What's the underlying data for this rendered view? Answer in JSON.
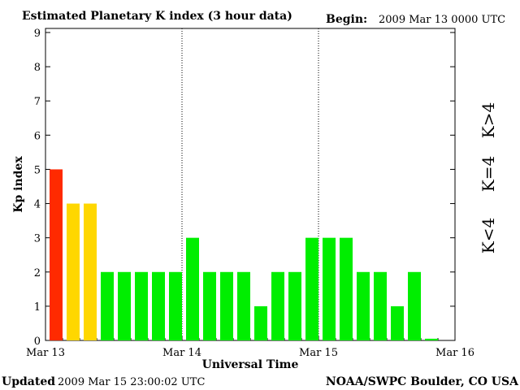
{
  "header": {
    "title": "Estimated Planetary K index (3 hour data)",
    "begin_label": "Begin:",
    "begin_value": "2009 Mar 13 0000 UTC"
  },
  "footer": {
    "updated_label": "Updated",
    "updated_value": "2009 Mar 15 23:00:02 UTC",
    "source": "NOAA/SWPC Boulder, CO USA"
  },
  "legend": [
    {
      "text": "K>4",
      "color": "#ff2a00"
    },
    {
      "text": "K=4",
      "color": "#ffd700"
    },
    {
      "text": "K<4",
      "color": "#00ee00"
    }
  ],
  "colors": {
    "k_gt_4": "#ff2a00",
    "k_eq_4": "#ffd700",
    "k_lt_4": "#00ee00",
    "axes": "#000000"
  },
  "chart_data": {
    "type": "bar",
    "title": "Estimated Planetary K index (3 hour data)",
    "xlabel": "Universal Time",
    "ylabel": "Kp index",
    "ylim": [
      0,
      9
    ],
    "yticks": [
      "0",
      "1",
      "2",
      "3",
      "4",
      "5",
      "6",
      "7",
      "8",
      "9"
    ],
    "xticks": [
      "Mar 13",
      "Mar 14",
      "Mar 15",
      "Mar 16"
    ],
    "interval_hours": 3,
    "values": [
      5,
      4,
      4,
      2,
      2,
      2,
      2,
      2,
      3,
      2,
      2,
      2,
      1,
      2,
      2,
      3,
      3,
      3,
      2,
      2,
      1,
      2,
      0.05
    ],
    "grid": "dotted vertical day separators"
  }
}
